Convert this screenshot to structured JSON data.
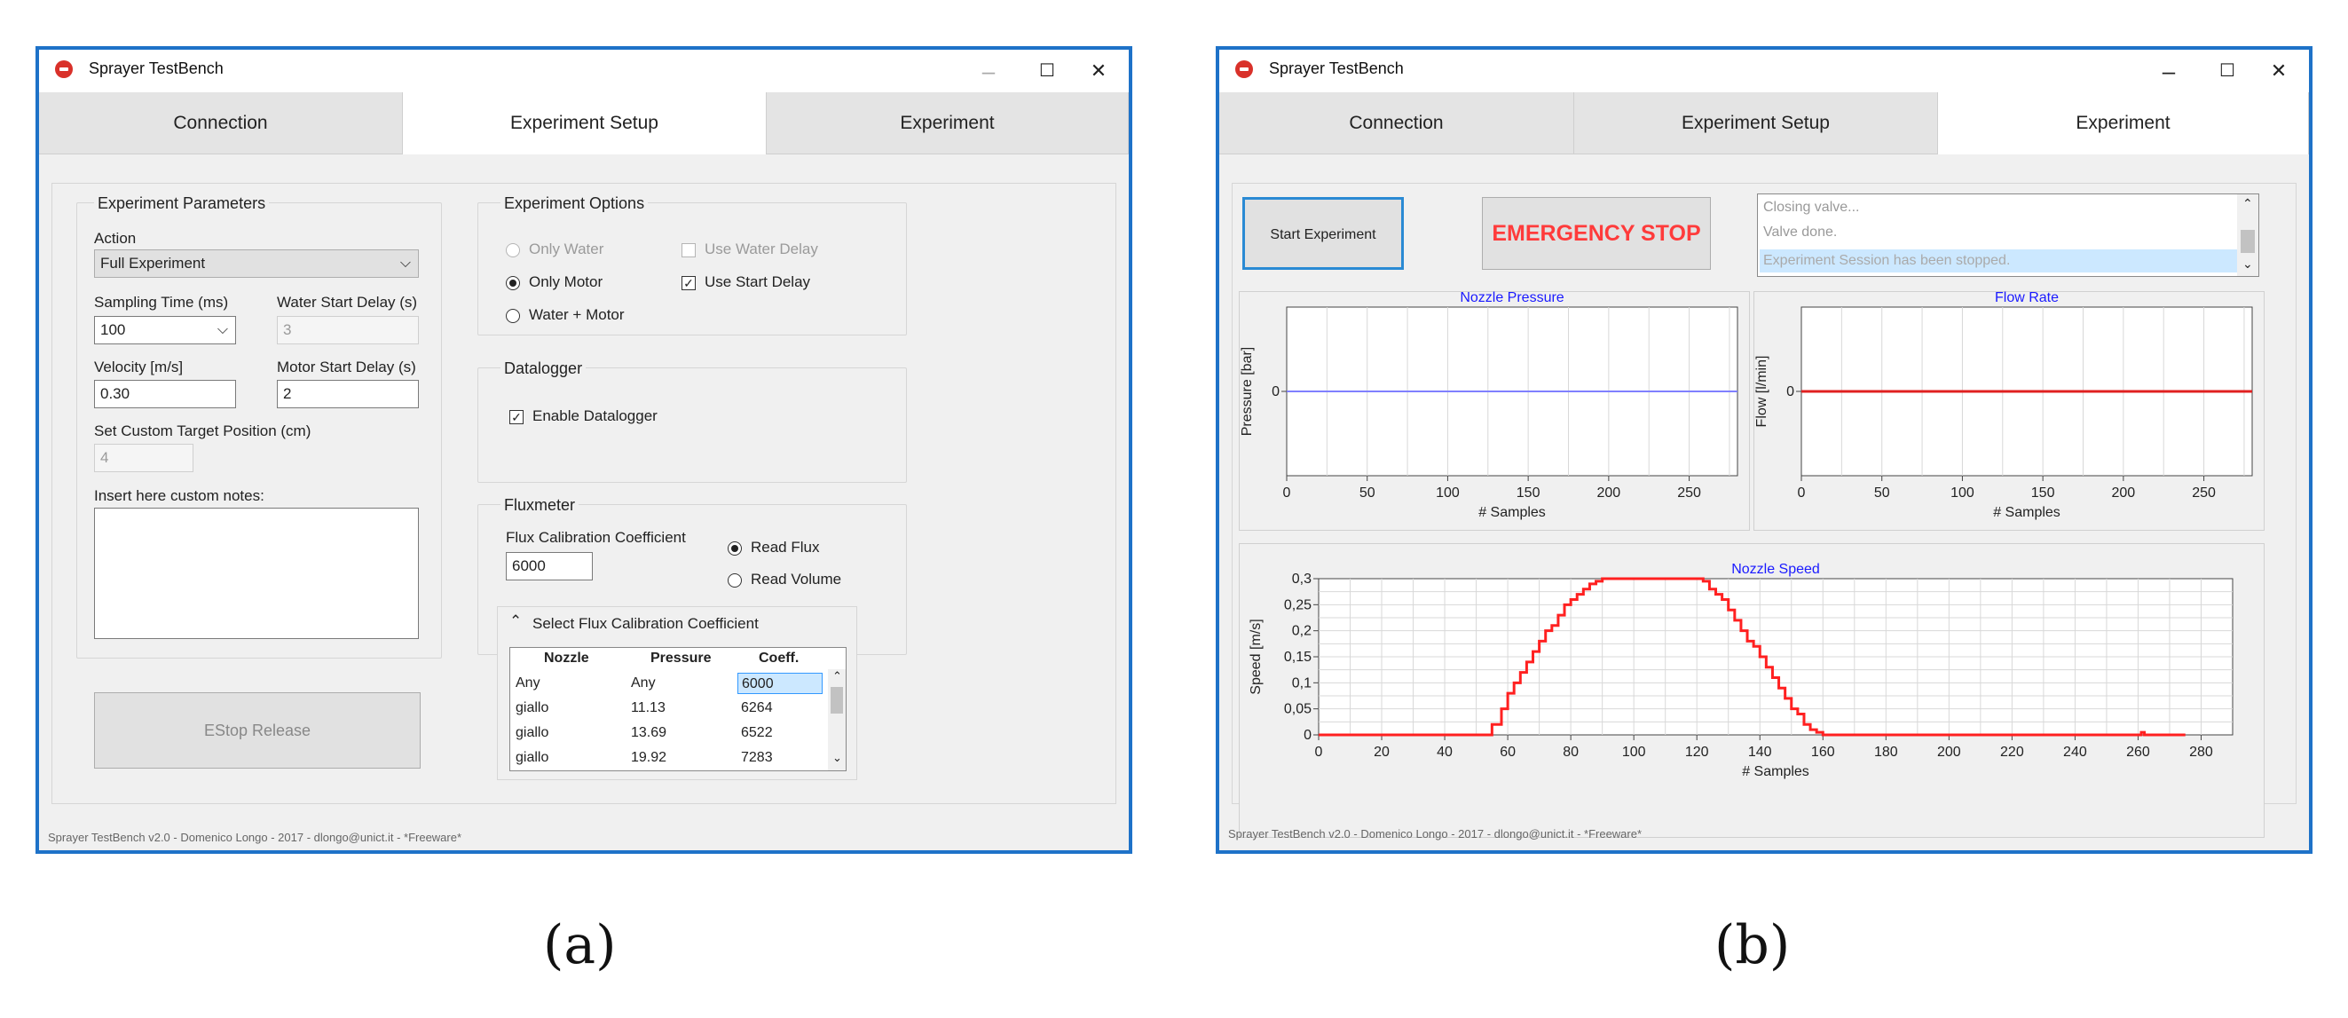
{
  "left": {
    "title": "Sprayer TestBench",
    "window_controls": {
      "minimize": "–",
      "maximize": "☐",
      "close": "✕"
    },
    "tabs": [
      "Connection",
      "Experiment Setup",
      "Experiment"
    ],
    "params": {
      "group_title": "Experiment Parameters",
      "action_label": "Action",
      "action_value": "Full Experiment",
      "sampling_label": "Sampling Time (ms)",
      "sampling_value": "100",
      "water_delay_label": "Water Start Delay (s)",
      "water_delay_value": "3",
      "velocity_label": "Velocity [m/s]",
      "velocity_value": "0.30",
      "motor_delay_label": "Motor Start Delay (s)",
      "motor_delay_value": "2",
      "target_label": "Set Custom Target Position (cm)",
      "target_value": "4",
      "notes_label": "Insert here custom notes:"
    },
    "estop_release": "EStop Release",
    "options": {
      "group_title": "Experiment Options",
      "only_water": "Only Water",
      "only_motor": "Only Motor",
      "water_motor": "Water + Motor",
      "use_water_delay": "Use Water Delay",
      "use_start_delay": "Use Start Delay"
    },
    "datalogger": {
      "group_title": "Datalogger",
      "enable": "Enable Datalogger"
    },
    "fluxmeter": {
      "group_title": "Fluxmeter",
      "coef_label": "Flux Calibration Coefficient",
      "coef_value": "6000",
      "read_flux": "Read Flux",
      "read_volume": "Read Volume",
      "select_header": "Select Flux Calibration Coefficient",
      "columns": [
        "Nozzle",
        "Pressure",
        "Coeff."
      ],
      "rows": [
        [
          "Any",
          "Any",
          "6000"
        ],
        [
          "giallo",
          "11.13",
          "6264"
        ],
        [
          "giallo",
          "13.69",
          "6522"
        ],
        [
          "giallo",
          "19.92",
          "7283"
        ]
      ]
    },
    "status": "Sprayer TestBench v2.0 - Domenico Longo - 2017 - dlongo@unict.it - *Freeware*"
  },
  "right": {
    "title": "Sprayer TestBench",
    "window_controls": {
      "minimize": "–",
      "maximize": "☐",
      "close": "✕"
    },
    "tabs": [
      "Connection",
      "Experiment Setup",
      "Experiment"
    ],
    "start_button": "Start Experiment",
    "emergency_button": "EMERGENCY STOP",
    "log": [
      "Closing valve...",
      "Valve done.",
      "Experiment Session has been stopped."
    ],
    "status": "Sprayer TestBench v2.0 - Domenico Longo - 2017 - dlongo@unict.it - *Freeware*"
  },
  "captions": {
    "a": "(a)",
    "b": "(b)"
  },
  "colors": {
    "window_border": "#1e72c8",
    "emergency": "#ff3b3b",
    "pressure_line": "#8080ff",
    "flow_line": "#e02020",
    "speed_line": "#ff2020"
  },
  "chart_data": [
    {
      "type": "line",
      "title": "Nozzle Pressure",
      "xlabel": "# Samples",
      "ylabel": "Pressure [bar]",
      "x_ticks": [
        0,
        50,
        100,
        150,
        200,
        250
      ],
      "y_ticks": [
        0
      ],
      "xlim": [
        0,
        280
      ],
      "ylim": [
        -1,
        1
      ],
      "series": [
        {
          "x": [
            0,
            280
          ],
          "y": [
            0,
            0
          ]
        }
      ]
    },
    {
      "type": "line",
      "title": "Flow Rate",
      "xlabel": "# Samples",
      "ylabel": "Flow [l/min]",
      "x_ticks": [
        0,
        50,
        100,
        150,
        200,
        250
      ],
      "y_ticks": [
        0
      ],
      "xlim": [
        0,
        280
      ],
      "ylim": [
        -1,
        1
      ],
      "series": [
        {
          "x": [
            0,
            280
          ],
          "y": [
            0,
            0
          ]
        }
      ]
    },
    {
      "type": "line",
      "title": "Nozzle Speed",
      "xlabel": "# Samples",
      "ylabel": "Speed [m/s]",
      "x_ticks": [
        0,
        20,
        40,
        60,
        80,
        100,
        120,
        140,
        160,
        180,
        200,
        220,
        240,
        260,
        280
      ],
      "y_ticks": [
        0,
        0.05,
        0.1,
        0.15,
        0.2,
        0.25,
        0.3
      ],
      "y_tick_labels": [
        "0",
        "0,05",
        "0,1",
        "0,15",
        "0,2",
        "0,25",
        "0,3"
      ],
      "xlim": [
        0,
        290
      ],
      "ylim": [
        0,
        0.3
      ],
      "series": [
        {
          "x": [
            0,
            52,
            55,
            58,
            60,
            62,
            64,
            66,
            68,
            70,
            72,
            74,
            76,
            78,
            80,
            82,
            84,
            86,
            88,
            90,
            92,
            120,
            122,
            124,
            126,
            128,
            130,
            132,
            134,
            136,
            138,
            140,
            142,
            144,
            146,
            148,
            150,
            152,
            154,
            156,
            158,
            160,
            260,
            261,
            262,
            275
          ],
          "y": [
            0,
            0,
            0.02,
            0.05,
            0.08,
            0.1,
            0.12,
            0.14,
            0.16,
            0.18,
            0.2,
            0.21,
            0.23,
            0.25,
            0.26,
            0.27,
            0.28,
            0.29,
            0.295,
            0.3,
            0.3,
            0.3,
            0.295,
            0.28,
            0.27,
            0.26,
            0.24,
            0.22,
            0.2,
            0.18,
            0.17,
            0.15,
            0.13,
            0.11,
            0.09,
            0.07,
            0.05,
            0.04,
            0.02,
            0.01,
            0.005,
            0,
            0,
            0.005,
            0,
            0
          ]
        }
      ]
    }
  ]
}
